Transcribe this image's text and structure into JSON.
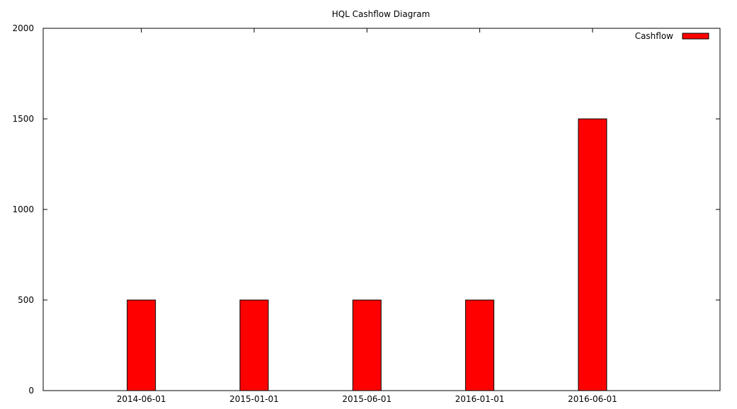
{
  "chart_data": {
    "type": "bar",
    "title": "HQL Cashflow Diagram",
    "xlabel": "",
    "ylabel": "",
    "categories": [
      "2014-06-01",
      "2015-01-01",
      "2015-06-01",
      "2016-01-01",
      "2016-06-01"
    ],
    "series": [
      {
        "name": "Cashflow",
        "values": [
          500,
          500,
          500,
          500,
          1500
        ],
        "color": "#ff0000"
      }
    ],
    "ylim": [
      0,
      2000
    ],
    "yticks": [
      0,
      500,
      1000,
      1500,
      2000
    ],
    "grid": false,
    "legend_position": "top-right"
  }
}
